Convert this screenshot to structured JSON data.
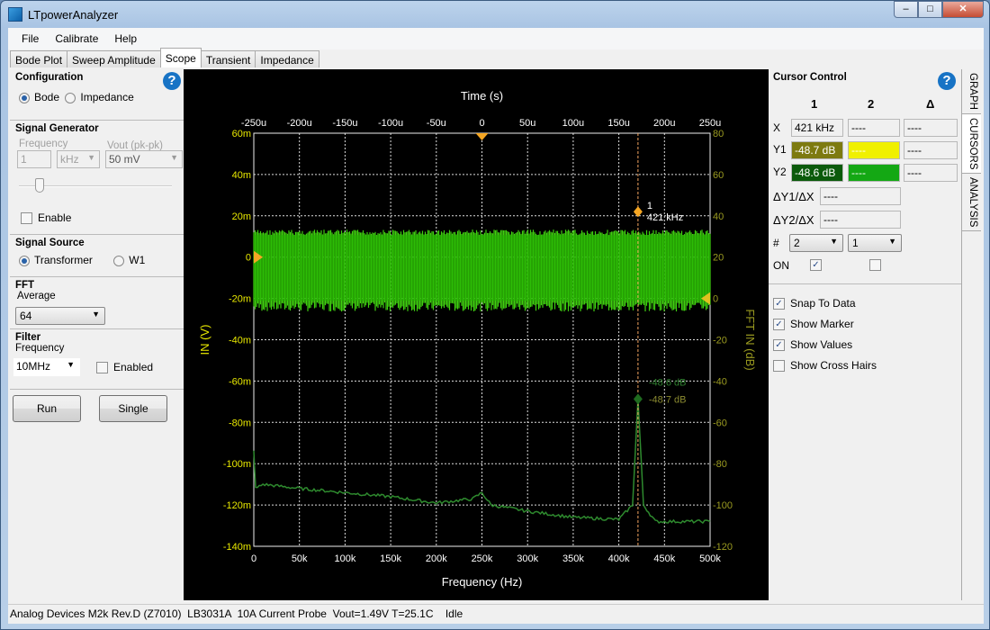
{
  "window": {
    "title": "LTpowerAnalyzer",
    "minimize": "–",
    "maximize": "□",
    "close": "✕"
  },
  "menu": [
    "File",
    "Calibrate",
    "Help"
  ],
  "tabs": [
    "Bode Plot",
    "Sweep Amplitude",
    "Scope",
    "Transient",
    "Impedance"
  ],
  "active_tab": "Scope",
  "left": {
    "configuration": {
      "title": "Configuration",
      "options": [
        "Bode",
        "Impedance"
      ],
      "selected": "Bode"
    },
    "signal_generator": {
      "title": "Signal Generator",
      "frequency_label": "Frequency",
      "frequency_value": "1",
      "frequency_unit": "kHz",
      "vout_label": "Vout (pk-pk)",
      "vout_value": "50 mV",
      "slider_position": 0.15,
      "enable_label": "Enable",
      "enabled": false
    },
    "signal_source": {
      "title": "Signal Source",
      "options": [
        "Transformer",
        "W1"
      ],
      "selected": "Transformer"
    },
    "fft": {
      "title": "FFT",
      "average_label": "Average",
      "average_value": "64"
    },
    "filter": {
      "title": "Filter",
      "frequency_label": "Frequency",
      "frequency_value": "10MHz",
      "enabled_label": "Enabled",
      "enabled": false
    },
    "run_label": "Run",
    "single_label": "Single"
  },
  "cursor_control": {
    "title": "Cursor Control",
    "col_headers": [
      "1",
      "2",
      "Δ"
    ],
    "x_label": "X",
    "x_values": [
      "421 kHz",
      "----",
      "----"
    ],
    "y1_label": "Y1",
    "y1_values": [
      "-48.7 dB",
      "----",
      "----"
    ],
    "y2_label": "Y2",
    "y2_values": [
      "-48.6 dB",
      "----",
      "----"
    ],
    "dy1dx_label": "ΔY1/ΔX",
    "dy1dx_value": "----",
    "dy2dx_label": "ΔY2/ΔX",
    "dy2dx_value": "----",
    "num_label": "#",
    "num_values": [
      "2",
      "1"
    ],
    "on_label": "ON",
    "on_values": [
      true,
      false
    ],
    "options": [
      {
        "label": "Snap To Data",
        "checked": true
      },
      {
        "label": "Show Marker",
        "checked": true
      },
      {
        "label": "Show Values",
        "checked": true
      },
      {
        "label": "Show Cross Hairs",
        "checked": false
      }
    ],
    "colors": {
      "y1_1": "#7d7a10",
      "y1_2": "#f0f000",
      "y2_1": "#0b5a0b",
      "y2_2": "#14a814"
    }
  },
  "side_tabs": [
    "GRAPH",
    "CURSORS",
    "ANALYSIS"
  ],
  "active_side_tab": "CURSORS",
  "status": "Analog Devices M2k Rev.D (Z7010)  LB3031A  10A Current Probe  Vout=1.49V T=25.1C    Idle",
  "chart_data": {
    "type": "line",
    "top_axis": {
      "label": "Time (s)",
      "ticks": [
        "-250u",
        "-200u",
        "-150u",
        "-100u",
        "-50u",
        "0",
        "50u",
        "100u",
        "150u",
        "200u",
        "250u"
      ],
      "range": [
        -0.00025,
        0.00025
      ]
    },
    "bottom_axis": {
      "label": "Frequency (Hz)",
      "ticks": [
        "0",
        "50k",
        "100k",
        "150k",
        "200k",
        "250k",
        "300k",
        "350k",
        "400k",
        "450k",
        "500k"
      ],
      "range": [
        0,
        500000
      ]
    },
    "left_axis": {
      "label": "IN (V)",
      "ticks": [
        "60m",
        "40m",
        "20m",
        "0",
        "-20m",
        "-40m",
        "-60m",
        "-80m",
        "-100m",
        "-120m",
        "-140m"
      ],
      "range": [
        -0.14,
        0.06
      ]
    },
    "right_axis": {
      "label": "FFT IN (dB)",
      "ticks": [
        "80",
        "60",
        "40",
        "20",
        "0",
        "-20",
        "-40",
        "-60",
        "-80",
        "-100",
        "-120"
      ],
      "range": [
        -120,
        80
      ]
    },
    "grid": true,
    "series": [
      {
        "axis": "left/top",
        "color": "#3fcf10",
        "note_values_V": {
          "upper": 0.012,
          "lower": -0.025
        },
        "kind": "noise band"
      },
      {
        "axis": "right/bottom",
        "color": "#2e8a2e",
        "x": [
          0,
          2000,
          10000,
          50000,
          100000,
          150000,
          200000,
          240000,
          250000,
          260000,
          300000,
          350000,
          400000,
          415000,
          421000,
          427000,
          440000,
          500000
        ],
        "y": [
          -74,
          -92,
          -90,
          -92,
          -94,
          -96,
          -99,
          -97,
          -94,
          -100,
          -103,
          -106,
          -107,
          -100,
          -48.7,
          -100,
          -108,
          -108
        ]
      }
    ],
    "cursor": {
      "label": "1",
      "frequency": "421 kHz",
      "x": 421000,
      "y1_label": "-48.7 dB",
      "y2_label": "-48.6 dB"
    },
    "markers": {
      "trigger_time": 0,
      "left_zero": 0,
      "right_zero": 0
    }
  }
}
